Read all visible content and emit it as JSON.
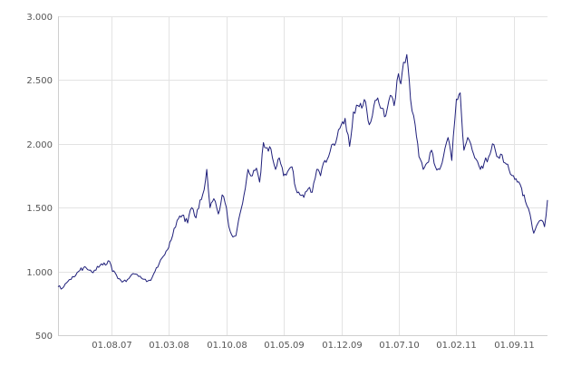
{
  "chart_data": {
    "type": "line",
    "title": "",
    "xlabel": "",
    "ylabel": "",
    "ylim": [
      500,
      3000
    ],
    "xlim": [
      "2007-01-15",
      "2012-01-05"
    ],
    "grid": true,
    "legend": "none",
    "line_color": "#1f1f7a",
    "grid_color": "#e3e3e3",
    "y_ticks": [
      {
        "value": 500,
        "label": "500"
      },
      {
        "value": 1000,
        "label": "1.000"
      },
      {
        "value": 1500,
        "label": "1.500"
      },
      {
        "value": 2000,
        "label": "2.000"
      },
      {
        "value": 2500,
        "label": "2.500"
      },
      {
        "value": 3000,
        "label": "3.000"
      }
    ],
    "x_ticks": [
      {
        "date": "2007-08-01",
        "label": "01.08.07"
      },
      {
        "date": "2008-03-01",
        "label": "01.03.08"
      },
      {
        "date": "2008-10-01",
        "label": "01.10.08"
      },
      {
        "date": "2009-05-01",
        "label": "01.05.09"
      },
      {
        "date": "2009-12-01",
        "label": "01.12.09"
      },
      {
        "date": "2010-07-01",
        "label": "01.07.10"
      },
      {
        "date": "2011-02-01",
        "label": "01.02.11"
      },
      {
        "date": "2011-09-01",
        "label": "01.09.11"
      }
    ],
    "series": [
      {
        "x": [
          "2007-01-15",
          "2007-02-01",
          "2007-02-20",
          "2007-03-10",
          "2007-04-01",
          "2007-04-20",
          "2007-05-10",
          "2007-05-25",
          "2007-06-10",
          "2007-06-25",
          "2007-07-10",
          "2007-07-25",
          "2007-08-05",
          "2007-08-20",
          "2007-09-05",
          "2007-09-25",
          "2007-10-10",
          "2007-10-25",
          "2007-11-10",
          "2007-11-25",
          "2007-12-10",
          "2007-12-25",
          "2008-01-10",
          "2008-01-25",
          "2008-02-10",
          "2008-02-25",
          "2008-03-05",
          "2008-03-15",
          "2008-04-01",
          "2008-04-20",
          "2008-05-10",
          "2008-05-25",
          "2008-06-10",
          "2008-06-25",
          "2008-07-10",
          "2008-07-20",
          "2008-08-01",
          "2008-08-15",
          "2008-09-01",
          "2008-09-15",
          "2008-10-01",
          "2008-10-10",
          "2008-10-25",
          "2008-11-05",
          "2008-11-20",
          "2008-12-05",
          "2008-12-20",
          "2009-01-05",
          "2009-01-20",
          "2009-02-01",
          "2009-02-15",
          "2009-03-01",
          "2009-03-15",
          "2009-04-01",
          "2009-04-15",
          "2009-05-01",
          "2009-05-15",
          "2009-06-01",
          "2009-06-15",
          "2009-07-01",
          "2009-07-15",
          "2009-08-01",
          "2009-08-15",
          "2009-09-01",
          "2009-09-15",
          "2009-10-01",
          "2009-10-15",
          "2009-11-01",
          "2009-11-15",
          "2009-12-01",
          "2009-12-15",
          "2010-01-01",
          "2010-01-15",
          "2010-02-01",
          "2010-02-15",
          "2010-03-01",
          "2010-03-15",
          "2010-04-01",
          "2010-04-15",
          "2010-05-01",
          "2010-05-15",
          "2010-06-01",
          "2010-06-15",
          "2010-07-01",
          "2010-07-10",
          "2010-07-20",
          "2010-08-01",
          "2010-08-15",
          "2010-09-01",
          "2010-09-15",
          "2010-10-01",
          "2010-10-15",
          "2010-11-01",
          "2010-11-15",
          "2010-12-01",
          "2010-12-15",
          "2011-01-01",
          "2011-01-15",
          "2011-02-01",
          "2011-02-15",
          "2011-03-01",
          "2011-03-15",
          "2011-04-01",
          "2011-04-15",
          "2011-05-01",
          "2011-05-15",
          "2011-06-01",
          "2011-06-15",
          "2011-07-01",
          "2011-07-15",
          "2011-08-01",
          "2011-08-15",
          "2011-09-01",
          "2011-09-15",
          "2011-10-01",
          "2011-10-15",
          "2011-11-01",
          "2011-11-15",
          "2011-12-01",
          "2011-12-15",
          "2011-12-25",
          "2012-01-05"
        ],
        "y": [
          880,
          870,
          920,
          960,
          1000,
          1030,
          1010,
          990,
          1040,
          1060,
          1050,
          1080,
          1000,
          970,
          930,
          920,
          960,
          980,
          960,
          940,
          920,
          930,
          1000,
          1060,
          1120,
          1170,
          1230,
          1280,
          1400,
          1440,
          1380,
          1500,
          1420,
          1560,
          1640,
          1800,
          1500,
          1570,
          1450,
          1600,
          1500,
          1350,
          1270,
          1280,
          1450,
          1600,
          1800,
          1750,
          1810,
          1700,
          2010,
          1970,
          1960,
          1800,
          1890,
          1750,
          1780,
          1820,
          1650,
          1600,
          1580,
          1650,
          1620,
          1800,
          1750,
          1870,
          1900,
          2000,
          2050,
          2150,
          2200,
          1980,
          2250,
          2300,
          2280,
          2330,
          2150,
          2300,
          2360,
          2280,
          2220,
          2380,
          2300,
          2550,
          2470,
          2640,
          2700,
          2350,
          2150,
          1900,
          1800,
          1850,
          1950,
          1820,
          1800,
          1900,
          2050,
          1870,
          2350,
          2400,
          1950,
          2050,
          1950,
          1880,
          1800,
          1850,
          1900,
          2000,
          1900,
          1920,
          1850,
          1800,
          1750,
          1700,
          1650,
          1550,
          1450,
          1300,
          1380,
          1400,
          1350,
          1560
        ]
      }
    ]
  }
}
